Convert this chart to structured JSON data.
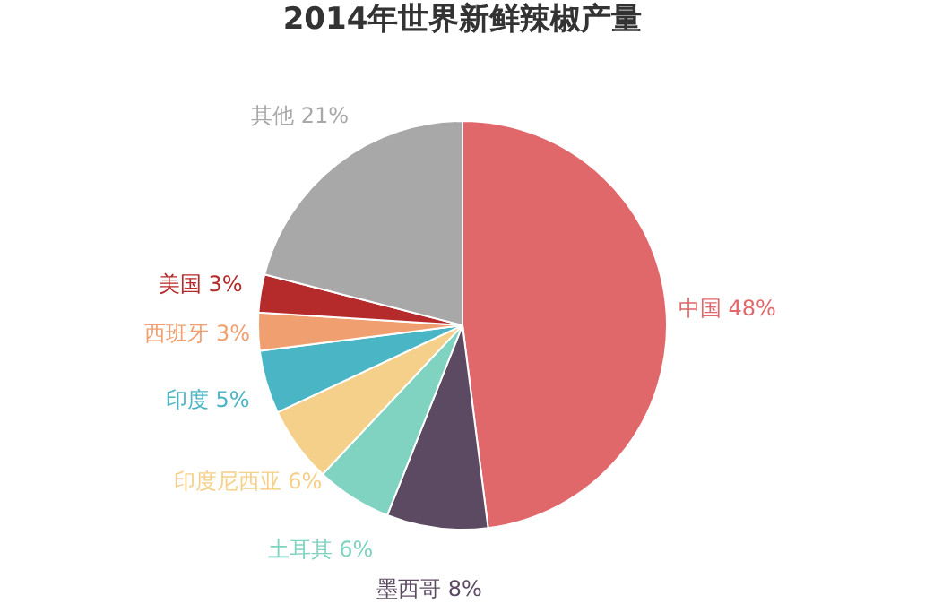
{
  "chart_data": {
    "type": "pie",
    "title": "2014年世界新鲜辣椒产量",
    "categories": [
      "中国",
      "墨西哥",
      "土耳其",
      "印度尼西亚",
      "印度",
      "西班牙",
      "美国",
      "其他"
    ],
    "values": [
      48,
      8,
      6,
      6,
      5,
      3,
      3,
      21
    ],
    "value_labels": [
      "48%",
      "8%",
      "6%",
      "6%",
      "5%",
      "3%",
      "3%",
      "21%"
    ],
    "colors": [
      "#e0686b",
      "#5c4a63",
      "#7fd3c0",
      "#f5d08a",
      "#4ab5c4",
      "#f0a070",
      "#b52a2a",
      "#a8a8a8"
    ],
    "legend": false
  }
}
